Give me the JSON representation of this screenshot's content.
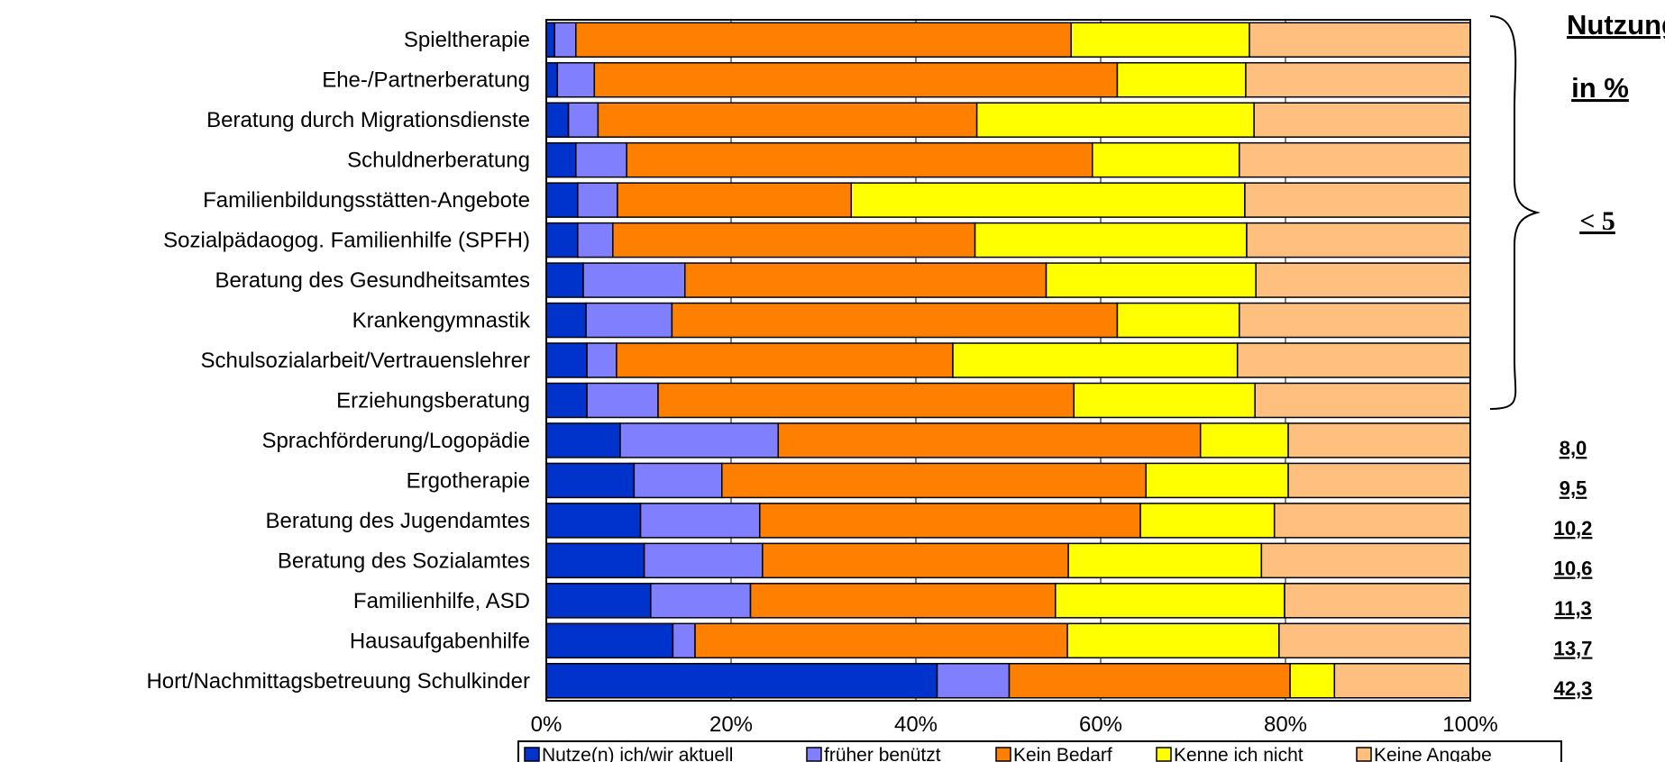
{
  "chart_data": {
    "type": "bar",
    "orientation": "horizontal",
    "stacked": "percent",
    "categories": [
      "Spieltherapie",
      "Ehe-/Partnerberatung",
      "Beratung durch Migrationsdienste",
      "Schuldnerberatung",
      "Familienbildungsstätten-Angebote",
      "Sozialpädaogog. Familienhilfe (SPFH)",
      "Beratung des Gesundheitsamtes",
      "Krankengymnastik",
      "Schulsozialarbeit/Vertrauenslehrer",
      "Erziehungsberatung",
      "Sprachförderung/Logopädie",
      "Ergotherapie",
      "Beratung des Jugendamtes",
      "Beratung des Sozialamtes",
      "Familienhilfe, ASD",
      "Hausaufgabenhilfe",
      "Hort/Nachmittagsbetreuung Schulkinder"
    ],
    "series": [
      {
        "name": "Nutze(n) ich/wir aktuell",
        "color": "#0033CC",
        "values": [
          0.9,
          1.2,
          2.4,
          3.2,
          3.4,
          3.4,
          4.0,
          4.3,
          4.4,
          4.4,
          8.0,
          9.5,
          10.2,
          10.6,
          11.3,
          13.7,
          42.3
        ]
      },
      {
        "name": "früher benützt",
        "color": "#8080FF",
        "values": [
          2.3,
          4.0,
          3.2,
          5.5,
          4.3,
          3.8,
          11.0,
          9.3,
          3.2,
          7.7,
          17.1,
          9.5,
          12.9,
          12.8,
          10.8,
          2.4,
          7.8
        ]
      },
      {
        "name": "Kein Bedarf",
        "color": "#FF7F00",
        "values": [
          53.6,
          56.6,
          41.0,
          50.4,
          25.3,
          39.2,
          39.1,
          48.2,
          36.4,
          45.0,
          45.7,
          45.9,
          41.2,
          33.1,
          33.0,
          40.3,
          30.4
        ]
      },
      {
        "name": "Kenne ich nicht",
        "color": "#FFFF00",
        "values": [
          19.3,
          13.9,
          30.0,
          15.9,
          42.6,
          29.4,
          22.7,
          13.2,
          30.8,
          19.6,
          9.5,
          15.4,
          14.5,
          20.9,
          24.8,
          22.9,
          4.8
        ]
      },
      {
        "name": "Keine Angabe",
        "color": "#FFBF7F",
        "values": [
          23.9,
          24.3,
          23.4,
          25.0,
          24.4,
          24.2,
          23.2,
          25.0,
          25.2,
          23.3,
          19.7,
          19.7,
          21.2,
          22.6,
          20.1,
          20.7,
          14.7
        ]
      }
    ],
    "xlim": [
      0,
      100
    ],
    "x_ticks": [
      "0%",
      "20%",
      "40%",
      "60%",
      "80%",
      "100%"
    ],
    "grid": true,
    "legend_position": "bottom"
  },
  "side_panel": {
    "title_line1": "Nutzung",
    "title_line2": "in %",
    "bracket_note": "< 5",
    "usage_values": [
      "8,0",
      "9,5",
      "10,2",
      "10,6",
      "11,3",
      "13,7",
      "42,3"
    ]
  }
}
